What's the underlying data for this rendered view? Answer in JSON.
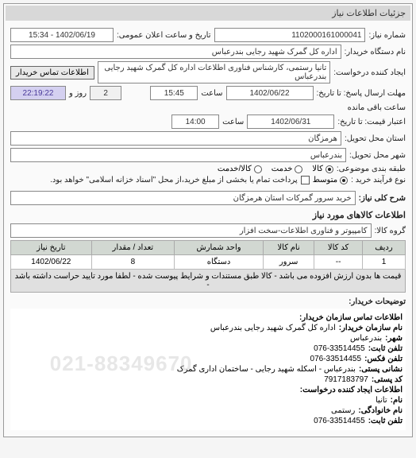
{
  "panel": {
    "title": "جزئیات اطلاعات نیاز"
  },
  "header": {
    "request_no_label": "شماره نیاز:",
    "request_no": "1102000161000041",
    "pub_datetime_label": "تاریخ و ساعت اعلان عمومی:",
    "pub_datetime": "1402/06/19 - 15:34",
    "buyer_org_label": "نام دستگاه خریدار:",
    "buyer_org": "اداره کل گمرک شهید رجایی بندرعباس",
    "creator_label": "ایجاد کننده درخواست:",
    "creator": "تانیا رستمی، کارشناس فناوری اطلاعات اداره کل گمرک شهید رجایی بندرعباس",
    "buyer_contact_btn": "اطلاعات تماس خریدار",
    "deadline_label": "مهلت ارسال پاسخ: تا تاریخ:",
    "deadline_date": "1402/06/22",
    "deadline_time_label": "ساعت",
    "deadline_time": "15:45",
    "days_label": "روز و",
    "days": "2",
    "countdown": "22:19:22",
    "remaining_label": "ساعت باقی مانده",
    "valid_until_label": "اعتبار قیمت: تا تاریخ:",
    "valid_until_date": "1402/06/31",
    "valid_until_time_label": "ساعت",
    "valid_until_time": "14:00",
    "province_label": "استان محل تحویل:",
    "province": "هرمزگان",
    "city_label": "شهر محل تحویل:",
    "city": "بندرعباس",
    "category_type_label": "طبقه بندی موضوعی:",
    "category_type": {
      "options": [
        "کالا",
        "خدمت",
        "کالا/خدمت"
      ],
      "selected": 0
    },
    "purchase_type_label": "نوع فرآیند خرید :",
    "purchase_type": {
      "options": [
        "متوسط"
      ],
      "selected": 0
    },
    "purchase_note_icon": "☑",
    "purchase_note": "پرداخت تمام یا بخشی از مبلغ خرید،از محل \"اسناد خزانه اسلامی\" خواهد بود."
  },
  "title_block": {
    "label": "شرح کلی نیاز:",
    "value": "خرید سرور گمرکات استان هرمزگان"
  },
  "goods_section": {
    "heading": "اطلاعات کالاهای مورد نیاز",
    "group_label": "گروه کالا:",
    "group_value": "کامپیوتر و فناوری اطلاعات-سخت افزار"
  },
  "items_table": {
    "columns": [
      "ردیف",
      "کد کالا",
      "نام کالا",
      "واحد شمارش",
      "تعداد / مقدار",
      "تاریخ نیاز"
    ],
    "rows": [
      [
        "1",
        "--",
        "سرور",
        "دستگاه",
        "8",
        "1402/06/22"
      ]
    ],
    "note": "قیمت ها بدون ارزش افزوده می باشد - کالا طبق مستندات و شرایط پیوست شده - لطفا مورد تایید حراست داشته باشد -"
  },
  "explanation": {
    "label": "توضیحات خریدار:"
  },
  "contact": {
    "heading": "اطلاعات تماس سازمان خریدار:",
    "org_label": "نام سازمان  خریدار:",
    "org": "اداره کل گمرک شهید رجایی بندرعباس",
    "city_label": "شهر:",
    "city": "بندرعباس",
    "phone_label": "تلفن ثابت:",
    "phone": "076-33514455",
    "fax_label": "تلفن فکس:",
    "fax": "076-33514455",
    "address_label": "نشانی پستی:",
    "address": "بندرعباس - اسکله شهید رجایی - ساختمان اداری گمرک",
    "postal_label": "کد پستی:",
    "postal": "7917183797",
    "creator_heading": "اطلاعات ایجاد کننده درخواست:",
    "name_label": "نام:",
    "name": "تانیا",
    "lastname_label": "نام خانوادگی:",
    "lastname": "رستمی",
    "creator_phone_label": "تلفن ثابت:",
    "creator_phone": "076-33514455",
    "watermark": "021-88349670"
  }
}
